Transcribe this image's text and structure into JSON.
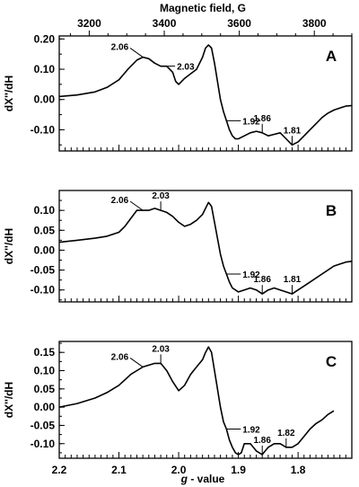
{
  "chart_data": {
    "type": "line",
    "top_axis": {
      "label": "Magnetic field, G",
      "ticks": [
        3200,
        3400,
        3600,
        3800
      ],
      "range": [
        3120,
        3900
      ]
    },
    "bottom_axis": {
      "label_italic": "g",
      "label_rest": " - value",
      "ticks": [
        2.2,
        2.1,
        2.0,
        1.9,
        1.8
      ],
      "tick_labels": [
        "2.2",
        "2.1",
        "2.0",
        "1.9",
        "1.8"
      ],
      "range": [
        2.2,
        1.71
      ]
    },
    "ylabel": "dX''/dH",
    "panels": [
      {
        "letter": "A",
        "ylim": [
          -0.17,
          0.21
        ],
        "yticks": [
          0.2,
          0.1,
          0.0,
          -0.1
        ],
        "ytick_labels": [
          "0.20",
          "0.10",
          "0.00",
          "-0.10"
        ],
        "series": {
          "x": [
            2.2,
            2.17,
            2.14,
            2.12,
            2.1,
            2.085,
            2.07,
            2.06,
            2.05,
            2.04,
            2.03,
            2.02,
            2.01,
            2.005,
            2.0,
            1.99,
            1.98,
            1.97,
            1.96,
            1.955,
            1.95,
            1.945,
            1.94,
            1.935,
            1.93,
            1.925,
            1.92,
            1.915,
            1.91,
            1.905,
            1.9,
            1.89,
            1.88,
            1.87,
            1.86,
            1.85,
            1.84,
            1.83,
            1.82,
            1.81,
            1.8,
            1.79,
            1.78,
            1.77,
            1.76,
            1.75,
            1.74,
            1.73,
            1.72,
            1.71
          ],
          "y": [
            0.01,
            0.015,
            0.025,
            0.04,
            0.065,
            0.1,
            0.13,
            0.14,
            0.135,
            0.12,
            0.11,
            0.11,
            0.09,
            0.06,
            0.05,
            0.07,
            0.085,
            0.1,
            0.14,
            0.17,
            0.18,
            0.17,
            0.12,
            0.06,
            0.0,
            -0.04,
            -0.07,
            -0.1,
            -0.12,
            -0.13,
            -0.13,
            -0.12,
            -0.11,
            -0.105,
            -0.11,
            -0.12,
            -0.115,
            -0.11,
            -0.13,
            -0.15,
            -0.14,
            -0.12,
            -0.1,
            -0.08,
            -0.06,
            -0.045,
            -0.035,
            -0.028,
            -0.022,
            -0.02
          ]
        },
        "annotations": [
          {
            "text": "2.06",
            "x": 2.06,
            "y": 0.14,
            "side": "left"
          },
          {
            "text": "2.03",
            "x": 2.03,
            "y": 0.11,
            "side": "right"
          },
          {
            "text": "1.92",
            "x": 1.92,
            "y": -0.07,
            "side": "right"
          },
          {
            "text": "1.86",
            "x": 1.86,
            "y": -0.11,
            "side": "above"
          },
          {
            "text": "1.81",
            "x": 1.81,
            "y": -0.15,
            "side": "above"
          }
        ]
      },
      {
        "letter": "B",
        "ylim": [
          -0.13,
          0.15
        ],
        "yticks": [
          0.1,
          0.05,
          0.0,
          -0.05,
          -0.1
        ],
        "ytick_labels": [
          "0.10",
          "0.05",
          "0.00",
          "-0.05",
          "-0.10"
        ],
        "series": {
          "x": [
            2.2,
            2.17,
            2.14,
            2.12,
            2.1,
            2.09,
            2.08,
            2.07,
            2.06,
            2.05,
            2.04,
            2.03,
            2.02,
            2.01,
            2.0,
            1.99,
            1.98,
            1.97,
            1.96,
            1.955,
            1.95,
            1.945,
            1.94,
            1.935,
            1.93,
            1.925,
            1.92,
            1.915,
            1.91,
            1.905,
            1.9,
            1.89,
            1.88,
            1.87,
            1.86,
            1.85,
            1.84,
            1.83,
            1.82,
            1.81,
            1.8,
            1.79,
            1.78,
            1.77,
            1.76,
            1.75,
            1.74,
            1.73,
            1.72,
            1.71
          ],
          "y": [
            0.02,
            0.025,
            0.03,
            0.035,
            0.045,
            0.06,
            0.08,
            0.1,
            0.1,
            0.1,
            0.105,
            0.1,
            0.095,
            0.085,
            0.07,
            0.06,
            0.065,
            0.075,
            0.09,
            0.105,
            0.12,
            0.11,
            0.07,
            0.03,
            -0.01,
            -0.04,
            -0.06,
            -0.08,
            -0.095,
            -0.1,
            -0.105,
            -0.1,
            -0.095,
            -0.1,
            -0.11,
            -0.1,
            -0.095,
            -0.1,
            -0.105,
            -0.11,
            -0.1,
            -0.09,
            -0.08,
            -0.07,
            -0.06,
            -0.05,
            -0.04,
            -0.035,
            -0.03,
            -0.028
          ]
        },
        "annotations": [
          {
            "text": "2.06",
            "x": 2.06,
            "y": 0.1,
            "side": "left"
          },
          {
            "text": "2.03",
            "x": 2.03,
            "y": 0.1,
            "side": "above"
          },
          {
            "text": "1.92",
            "x": 1.92,
            "y": -0.06,
            "side": "right"
          },
          {
            "text": "1.86",
            "x": 1.86,
            "y": -0.11,
            "side": "above"
          },
          {
            "text": "1.81",
            "x": 1.81,
            "y": -0.11,
            "side": "above"
          }
        ]
      },
      {
        "letter": "C",
        "ylim": [
          -0.14,
          0.18
        ],
        "yticks": [
          0.15,
          0.1,
          0.05,
          0.0,
          -0.05,
          -0.1
        ],
        "ytick_labels": [
          "0.15",
          "0.10",
          "0.05",
          "0.00",
          "-0.05",
          "-0.10"
        ],
        "series": {
          "x": [
            2.2,
            2.17,
            2.14,
            2.12,
            2.1,
            2.09,
            2.08,
            2.07,
            2.06,
            2.05,
            2.04,
            2.03,
            2.02,
            2.01,
            2.0,
            1.99,
            1.98,
            1.97,
            1.96,
            1.955,
            1.95,
            1.945,
            1.94,
            1.935,
            1.93,
            1.925,
            1.92,
            1.915,
            1.91,
            1.905,
            1.9,
            1.895,
            1.89,
            1.88,
            1.87,
            1.86,
            1.85,
            1.84,
            1.83,
            1.82,
            1.81,
            1.8,
            1.79,
            1.78,
            1.77,
            1.76,
            1.75,
            1.74
          ],
          "y": [
            0.0,
            0.01,
            0.025,
            0.04,
            0.06,
            0.075,
            0.09,
            0.1,
            0.11,
            0.115,
            0.12,
            0.12,
            0.1,
            0.07,
            0.045,
            0.06,
            0.09,
            0.11,
            0.13,
            0.15,
            0.165,
            0.15,
            0.1,
            0.05,
            0.0,
            -0.04,
            -0.06,
            -0.09,
            -0.11,
            -0.125,
            -0.13,
            -0.125,
            -0.1,
            -0.1,
            -0.12,
            -0.13,
            -0.11,
            -0.1,
            -0.1,
            -0.11,
            -0.11,
            -0.1,
            -0.08,
            -0.06,
            -0.045,
            -0.035,
            -0.02,
            -0.01
          ]
        },
        "annotations": [
          {
            "text": "2.06",
            "x": 2.06,
            "y": 0.11,
            "side": "left"
          },
          {
            "text": "2.03",
            "x": 2.03,
            "y": 0.12,
            "side": "above"
          },
          {
            "text": "1.92",
            "x": 1.92,
            "y": -0.06,
            "side": "right"
          },
          {
            "text": "1.86",
            "x": 1.86,
            "y": -0.13,
            "side": "above"
          },
          {
            "text": "1.82",
            "x": 1.82,
            "y": -0.11,
            "side": "above"
          }
        ]
      }
    ]
  }
}
